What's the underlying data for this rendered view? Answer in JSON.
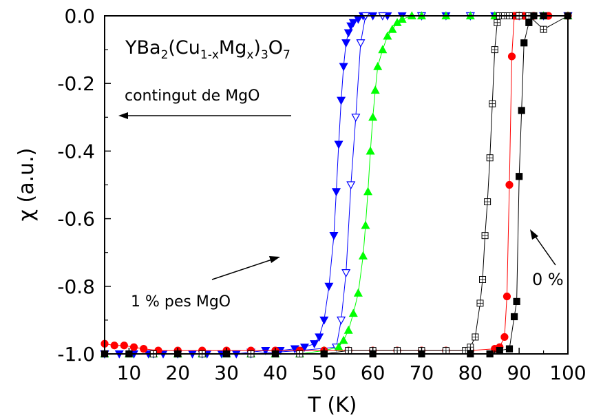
{
  "chart_data": {
    "type": "scatter",
    "xlabel": "T (K)",
    "ylabel": "χ (a.u.)",
    "xlim": [
      5,
      100
    ],
    "ylim": [
      -1.0,
      0.0
    ],
    "x_ticks": [
      10,
      20,
      30,
      40,
      50,
      60,
      70,
      80,
      90,
      100
    ],
    "y_ticks": [
      0.0,
      -0.2,
      -0.4,
      -0.6,
      -0.8,
      -1.0
    ],
    "x_tick_labels": [
      "10",
      "20",
      "30",
      "40",
      "50",
      "60",
      "70",
      "80",
      "90",
      "100"
    ],
    "y_tick_labels": [
      "0.0",
      "-0.2",
      "-0.4",
      "-0.6",
      "-0.8",
      "-1.0"
    ],
    "grid": false,
    "annotations": {
      "formula": {
        "base1": "YBa",
        "sub1": "2",
        "mid1": "(Cu",
        "sub2": "1-x",
        "mid2": "Mg",
        "sub3": "x",
        "mid3": ")",
        "sub4": "3",
        "mid4": "O",
        "sub5": "7"
      },
      "content_label": "contingut de MgO",
      "weight_label": "1 % pes MgO",
      "zero_label": "0 %"
    },
    "series": [
      {
        "color": "#0000ff",
        "marker": "triangle-down",
        "filled": true,
        "x": [
          5,
          8,
          11,
          14,
          17,
          20,
          23,
          26,
          29,
          32,
          35,
          38,
          41,
          44,
          46,
          48,
          49,
          50,
          51,
          52,
          52.5,
          53,
          53.5,
          54,
          54.5,
          55,
          55.5,
          56,
          57,
          58,
          60,
          63,
          66,
          70,
          75,
          80,
          85,
          90,
          95,
          100
        ],
        "y": [
          -1.0,
          -1.0,
          -1.0,
          -1.0,
          -1.0,
          -1.0,
          -1.0,
          -1.0,
          -1.0,
          -1.0,
          -0.995,
          -0.99,
          -0.99,
          -0.985,
          -0.98,
          -0.97,
          -0.95,
          -0.9,
          -0.8,
          -0.65,
          -0.52,
          -0.38,
          -0.25,
          -0.15,
          -0.08,
          -0.05,
          -0.03,
          -0.02,
          -0.01,
          0.0,
          0.0,
          0.0,
          0.0,
          0.0,
          0.0,
          0.0,
          0.0,
          0.0,
          0.0,
          0.0
        ]
      },
      {
        "color": "#0000ff",
        "marker": "triangle-down",
        "filled": false,
        "x": [
          5,
          15,
          25,
          35,
          45,
          52.5,
          53.5,
          54.5,
          55.5,
          56.5,
          57.5,
          58.5,
          62,
          70,
          80,
          90,
          100
        ],
        "y": [
          -1.0,
          -1.0,
          -1.0,
          -1.0,
          -0.99,
          -0.98,
          -0.9,
          -0.76,
          -0.5,
          -0.3,
          -0.08,
          0.0,
          0.0,
          0.0,
          0.0,
          0.0,
          0.0
        ]
      },
      {
        "color": "#00ff00",
        "marker": "triangle-up",
        "filled": true,
        "x": [
          5,
          10,
          15,
          20,
          25,
          30,
          35,
          40,
          45,
          50,
          53,
          54,
          55,
          56,
          57,
          58,
          58.5,
          59,
          59.5,
          60,
          60.5,
          61,
          62,
          63,
          64,
          65,
          66,
          68,
          70,
          75,
          80,
          85,
          90,
          95,
          100
        ],
        "y": [
          -1.0,
          -1.0,
          -1.0,
          -1.0,
          -1.0,
          -1.0,
          -1.0,
          -1.0,
          -1.0,
          -0.99,
          -0.98,
          -0.96,
          -0.93,
          -0.88,
          -0.82,
          -0.71,
          -0.62,
          -0.52,
          -0.4,
          -0.3,
          -0.22,
          -0.15,
          -0.1,
          -0.06,
          -0.04,
          -0.02,
          -0.01,
          0.0,
          0.0,
          0.0,
          0.0,
          0.0,
          0.0,
          0.0,
          0.0
        ]
      },
      {
        "color": "#ff0000",
        "marker": "circle",
        "filled": true,
        "x": [
          5,
          7,
          9,
          11,
          13,
          16,
          20,
          25,
          30,
          35,
          40,
          45,
          50,
          55,
          60,
          65,
          70,
          75,
          80,
          85,
          86,
          87,
          87.5,
          88,
          88.5,
          89,
          89.5,
          90,
          91,
          93,
          96,
          100
        ],
        "y": [
          -0.97,
          -0.975,
          -0.975,
          -0.98,
          -0.985,
          -0.99,
          -0.99,
          -0.99,
          -0.99,
          -0.99,
          -0.99,
          -0.99,
          -0.99,
          -0.99,
          -0.99,
          -0.99,
          -0.99,
          -0.99,
          -0.99,
          -0.985,
          -0.98,
          -0.95,
          -0.83,
          -0.5,
          -0.12,
          0.0,
          0.0,
          0.0,
          0.0,
          0.0,
          0.0,
          0.0
        ]
      },
      {
        "color": "#000000",
        "marker": "square-plus",
        "filled": false,
        "x": [
          5,
          10,
          15,
          20,
          25,
          30,
          35,
          40,
          45,
          50,
          55,
          60,
          65,
          70,
          75,
          79,
          80,
          81,
          82,
          82.5,
          83,
          83.5,
          84,
          84.5,
          85,
          85.5,
          86,
          87,
          88,
          90,
          92,
          95,
          100
        ],
        "y": [
          -1.0,
          -1.0,
          -1.0,
          -1.0,
          -1.0,
          -1.0,
          -1.0,
          -1.0,
          -1.0,
          -1.0,
          -0.99,
          -0.99,
          -0.99,
          -0.99,
          -0.99,
          -0.99,
          -0.98,
          -0.95,
          -0.85,
          -0.78,
          -0.65,
          -0.55,
          -0.42,
          -0.26,
          -0.1,
          -0.02,
          0.0,
          0.0,
          0.0,
          0.0,
          0.0,
          -0.04,
          0.0
        ]
      },
      {
        "color": "#000000",
        "marker": "square",
        "filled": true,
        "x": [
          5,
          10,
          20,
          30,
          40,
          50,
          60,
          70,
          80,
          84,
          86,
          88,
          89,
          89.5,
          90,
          90.5,
          91,
          92,
          93,
          95,
          100
        ],
        "y": [
          -1.0,
          -1.0,
          -1.0,
          -1.0,
          -1.0,
          -1.0,
          -1.0,
          -1.0,
          -1.0,
          -1.0,
          -0.99,
          -0.985,
          -0.89,
          -0.845,
          -0.475,
          -0.28,
          -0.08,
          -0.02,
          0.0,
          0.0,
          0.0
        ]
      }
    ]
  }
}
